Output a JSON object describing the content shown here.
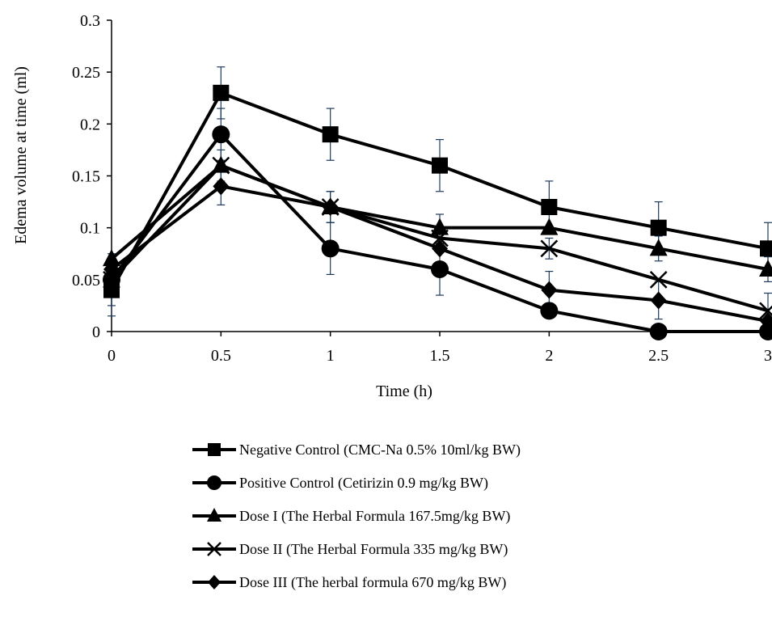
{
  "chart_data": {
    "type": "line",
    "title": "",
    "xlabel": "Time (h)",
    "ylabel": "Edema volume at time (ml)",
    "xlim": [
      0,
      3
    ],
    "ylim": [
      0,
      0.3
    ],
    "x_ticks": [
      "0",
      "0.5",
      "1",
      "1.5",
      "2",
      "2.5",
      "3"
    ],
    "y_ticks": [
      "0",
      "0.05",
      "0.1",
      "0.15",
      "0.2",
      "0.25",
      "0.3"
    ],
    "grid": false,
    "legend_position": "bottom",
    "x": [
      0,
      0.5,
      1,
      1.5,
      2,
      2.5,
      3
    ],
    "series": [
      {
        "name": "Negative Control (CMC-Na 0.5% 10ml/kg BW)",
        "marker": "square",
        "values": [
          0.04,
          0.23,
          0.19,
          0.16,
          0.12,
          0.1,
          0.08
        ],
        "errors": [
          0.025,
          0.025,
          0.025,
          0.025,
          0.025,
          0.025,
          0.025
        ]
      },
      {
        "name": "Positive Control (Cetirizin 0.9 mg/kg BW)",
        "marker": "circle",
        "values": [
          0.05,
          0.19,
          0.08,
          0.06,
          0.02,
          0.0,
          0.0
        ],
        "errors": [
          0.025,
          0.025,
          0.025,
          0.025,
          0.0,
          0.0,
          0.0
        ]
      },
      {
        "name": "Dose I (The Herbal Formula 167.5mg/kg BW)",
        "marker": "triangle",
        "values": [
          0.07,
          0.16,
          0.12,
          0.1,
          0.1,
          0.08,
          0.06
        ],
        "errors": [
          0.0,
          0.015,
          0.015,
          0.013,
          0.0,
          0.012,
          0.012
        ]
      },
      {
        "name": "Dose II (The Herbal Formula 335 mg/kg BW)",
        "marker": "x",
        "values": [
          0.05,
          0.16,
          0.12,
          0.09,
          0.08,
          0.05,
          0.02
        ],
        "errors": [
          0.0,
          0.0,
          0.015,
          0.0,
          0.01,
          0.0,
          0.017
        ]
      },
      {
        "name": "Dose III (The herbal formula 670 mg/kg BW)",
        "marker": "diamond",
        "values": [
          0.06,
          0.14,
          0.12,
          0.08,
          0.04,
          0.03,
          0.01
        ],
        "errors": [
          0.0,
          0.018,
          0.0,
          0.0,
          0.018,
          0.018,
          0.0
        ]
      }
    ]
  }
}
